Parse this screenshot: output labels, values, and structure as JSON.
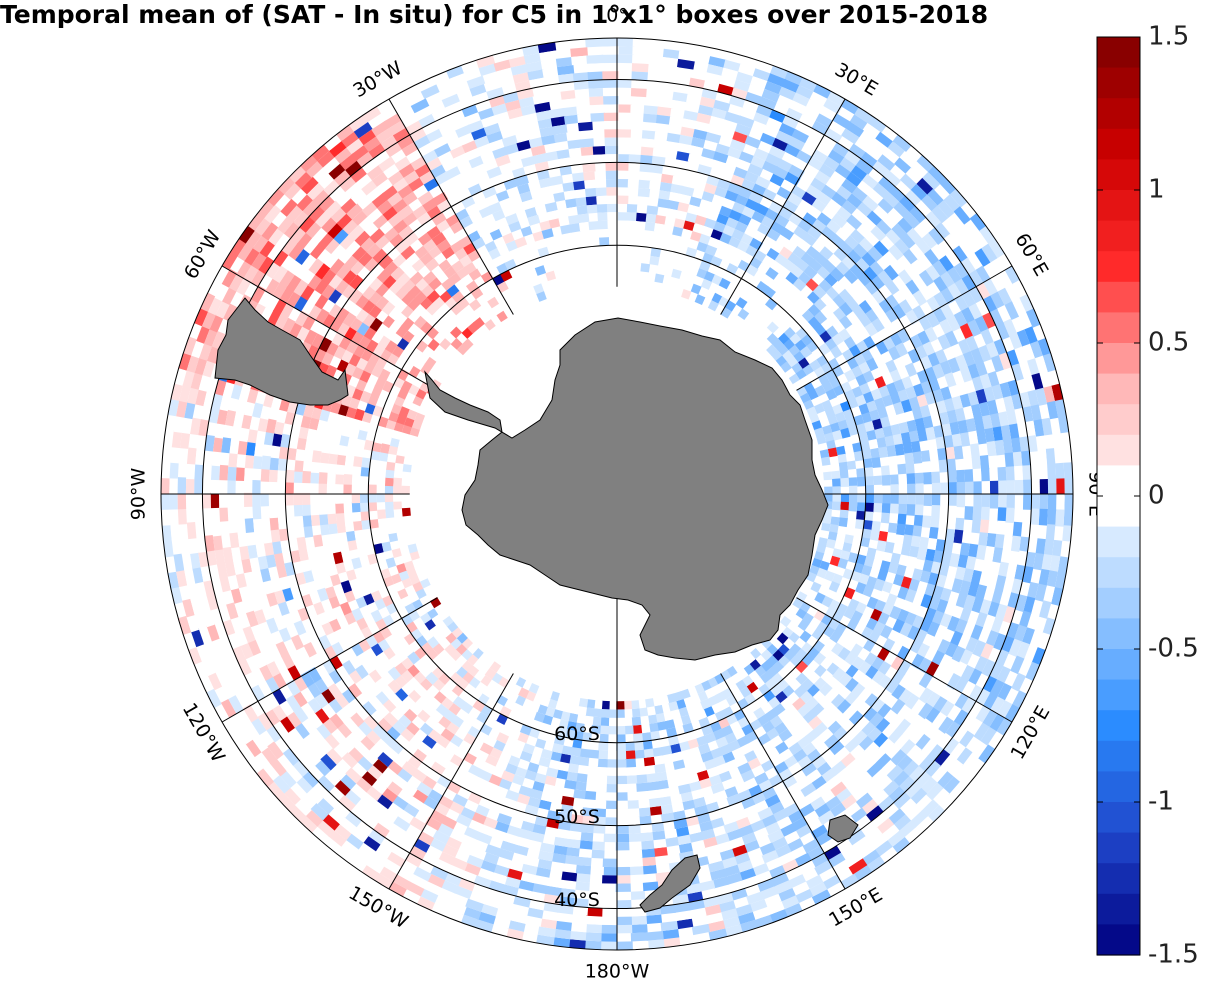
{
  "title": "Temporal mean of (SAT - In situ) for C5 in 1°x1° boxes over 2015-2018",
  "chart_data": {
    "type": "heatmap",
    "title": "Temporal mean of (SAT - In situ) for C5 in 1°x1° boxes over 2015-2018",
    "projection": "south polar stereographic",
    "grid_cell": "1°x1°",
    "lat_range": [
      -90,
      -35
    ],
    "data_ring": {
      "outer_lat": -35,
      "inner_lat": -65
    },
    "longitude_labels": [
      "0°",
      "30°E",
      "60°E",
      "90°E",
      "120°E",
      "150°E",
      "180°W",
      "150°W",
      "120°W",
      "90°W",
      "60°W",
      "30°W"
    ],
    "latitude_labels": [
      "40°S",
      "50°S",
      "60°S"
    ],
    "colorbar": {
      "min": -1.5,
      "max": 1.5,
      "ticks": [
        1.5,
        1,
        0.5,
        0,
        -0.5,
        -1,
        -1.5
      ],
      "tick_labels": [
        "1.5",
        "1",
        "0.5",
        "0",
        "-0.5",
        "-1",
        "-1.5"
      ],
      "levels": 30,
      "colors_negative": [
        "#00007f",
        "#1e44c8",
        "#2b8cff",
        "#9ccaff",
        "#ffffff"
      ],
      "colors_positive": [
        "#ffffff",
        "#ffb3b3",
        "#ff2a2a",
        "#cc0000",
        "#7f0000"
      ]
    },
    "land_color": "#808080",
    "value_summary": {
      "dominant_sign_indian_pacific": "negative",
      "dominant_sign_atlantic_drake": "positive",
      "typical_range": [
        -0.5,
        0.5
      ]
    }
  }
}
